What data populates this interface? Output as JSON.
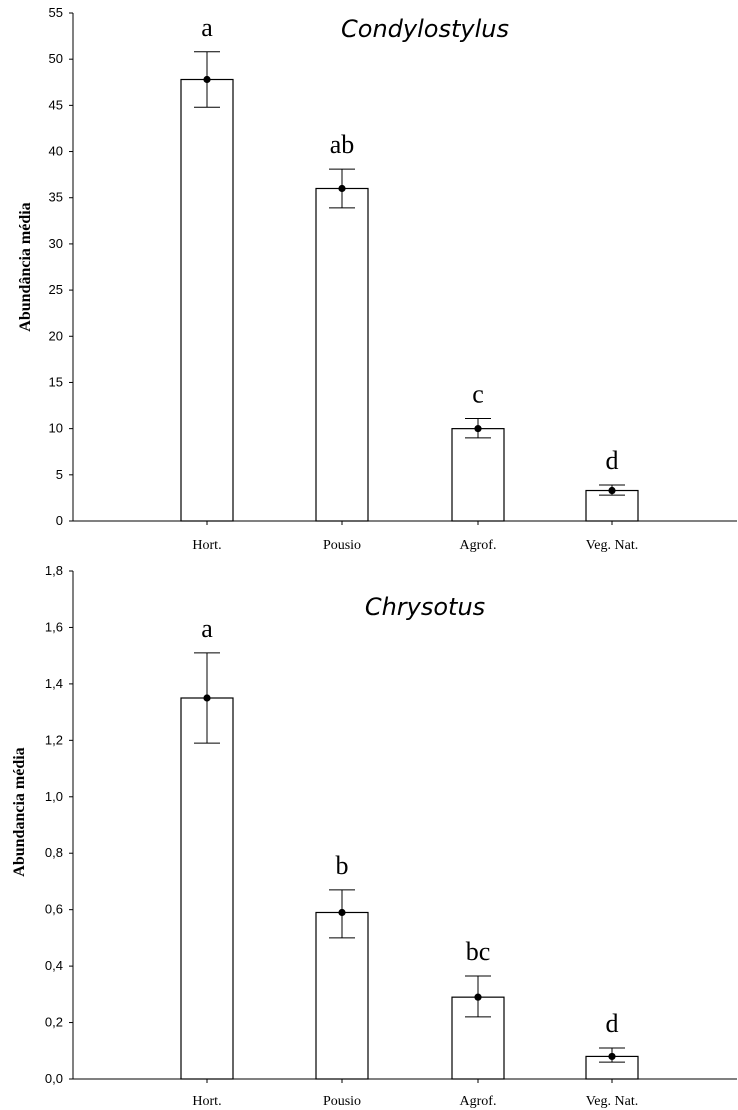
{
  "chart_data": [
    {
      "type": "bar",
      "title": "Condylostylus",
      "xlabel": "",
      "ylabel": "Abundância média",
      "categories": [
        "Hort.",
        "Pousio",
        "Agrof.",
        "Veg. Nat."
      ],
      "values": [
        47.8,
        36.0,
        10.0,
        3.3
      ],
      "error_low": [
        44.8,
        33.9,
        9.0,
        2.8
      ],
      "error_high": [
        50.8,
        38.1,
        11.1,
        3.9
      ],
      "significance_letters": [
        "a",
        "ab",
        "c",
        "d"
      ],
      "ylim": [
        0,
        55
      ],
      "yticks": [
        "0",
        "5",
        "10",
        "15",
        "20",
        "25",
        "30",
        "35",
        "40",
        "45",
        "50",
        "55"
      ],
      "grid": false
    },
    {
      "type": "bar",
      "title": "Chrysotus",
      "xlabel": "",
      "ylabel": "Abundancia média",
      "categories": [
        "Hort.",
        "Pousio",
        "Agrof.",
        "Veg. Nat."
      ],
      "values": [
        1.35,
        0.59,
        0.29,
        0.08
      ],
      "error_low": [
        1.19,
        0.5,
        0.22,
        0.06
      ],
      "error_high": [
        1.51,
        0.67,
        0.365,
        0.11
      ],
      "significance_letters": [
        "a",
        "b",
        "bc",
        "d"
      ],
      "ylim": [
        0,
        1.8
      ],
      "yticks": [
        "0,0",
        "0,2",
        "0,4",
        "0,6",
        "0,8",
        "1,0",
        "1,2",
        "1,4",
        "1,6",
        "1,8"
      ],
      "grid": false
    }
  ]
}
